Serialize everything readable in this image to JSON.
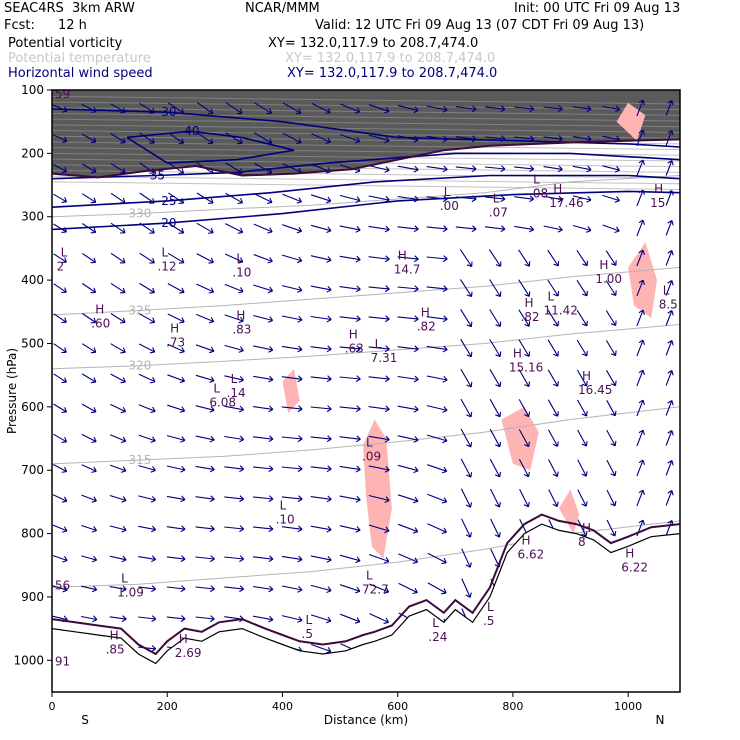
{
  "header": {
    "model": "SEAC4RS  3km ARW",
    "org": "NCAR/MMM",
    "init": "Init: 00 UTC Fri 09 Aug 13",
    "fcst_label": "Fcst:",
    "fcst_value": "12 h",
    "valid": "Valid: 12 UTC Fri 09 Aug 13 (07 CDT Fri 09 Aug 13)",
    "fields": [
      {
        "name": "Potential vorticity",
        "xsec": "XY= 132.0,117.9 to 208.7,474.0",
        "color": "#000000"
      },
      {
        "name": "Potential temperature",
        "xsec": "XY= 132.0,117.9 to 208.7,474.0",
        "color": "#c8c8c8"
      },
      {
        "name": "Horizontal wind speed",
        "xsec": "XY= 132.0,117.9 to 208.7,474.0",
        "color": "#000080"
      }
    ]
  },
  "chart_data": {
    "type": "cross-section",
    "xlabel": "Distance (km)",
    "ylabel": "Pressure (hPa)",
    "xlim": [
      0,
      1090
    ],
    "ylim": [
      1050,
      100
    ],
    "x_ticks": [
      "0",
      "200",
      "400",
      "600",
      "800",
      "1000"
    ],
    "y_ticks": [
      "100",
      "200",
      "300",
      "400",
      "500",
      "600",
      "700",
      "800",
      "900",
      "1000"
    ],
    "x_end_labels": {
      "left": "S",
      "right": "N"
    },
    "colors": {
      "wind": "#000080",
      "theta": "#b4b4b4",
      "pv_pos": "#ffb4b4",
      "terrain": "#3c0a3c",
      "label": "#4b0f55"
    },
    "theta_contours": [
      {
        "label": "330",
        "points": [
          [
            0,
            300
          ],
          [
            150,
            295
          ],
          [
            300,
            288
          ],
          [
            450,
            282
          ],
          [
            600,
            272
          ],
          [
            750,
            262
          ],
          [
            900,
            245
          ],
          [
            1090,
            235
          ]
        ]
      },
      {
        "label": "325",
        "points": [
          [
            0,
            455
          ],
          [
            150,
            448
          ],
          [
            300,
            440
          ],
          [
            450,
            430
          ],
          [
            600,
            420
          ],
          [
            750,
            410
          ],
          [
            900,
            395
          ],
          [
            1090,
            380
          ]
        ]
      },
      {
        "label": "320",
        "points": [
          [
            0,
            540
          ],
          [
            150,
            535
          ],
          [
            300,
            528
          ],
          [
            450,
            520
          ],
          [
            600,
            510
          ],
          [
            750,
            500
          ],
          [
            900,
            485
          ],
          [
            1090,
            470
          ]
        ]
      },
      {
        "label": "315",
        "points": [
          [
            0,
            690
          ],
          [
            150,
            684
          ],
          [
            300,
            678
          ],
          [
            450,
            668
          ],
          [
            600,
            655
          ],
          [
            750,
            640
          ],
          [
            900,
            620
          ],
          [
            1090,
            600
          ]
        ]
      },
      {
        "label": "",
        "points": [
          [
            0,
            885
          ],
          [
            150,
            880
          ],
          [
            300,
            870
          ],
          [
            450,
            860
          ],
          [
            600,
            845
          ],
          [
            750,
            825
          ],
          [
            900,
            800
          ],
          [
            1090,
            780
          ]
        ]
      }
    ],
    "wind_speed_contours": [
      {
        "label": "30",
        "points": [
          [
            0,
            130
          ],
          [
            200,
            135
          ],
          [
            400,
            150
          ],
          [
            600,
            175
          ],
          [
            800,
            180
          ],
          [
            1000,
            185
          ],
          [
            1090,
            190
          ]
        ]
      },
      {
        "label": "40",
        "points": [
          [
            130,
            175
          ],
          [
            240,
            165
          ],
          [
            330,
            175
          ],
          [
            420,
            195
          ],
          [
            320,
            210
          ],
          [
            200,
            215
          ],
          [
            130,
            175
          ]
        ]
      },
      {
        "label": "35",
        "points": [
          [
            0,
            240
          ],
          [
            180,
            235
          ],
          [
            320,
            230
          ],
          [
            480,
            215
          ],
          [
            700,
            200
          ],
          [
            900,
            200
          ],
          [
            1090,
            210
          ]
        ]
      },
      {
        "label": "25",
        "points": [
          [
            0,
            285
          ],
          [
            200,
            275
          ],
          [
            380,
            262
          ],
          [
            560,
            245
          ],
          [
            760,
            235
          ],
          [
            1000,
            235
          ],
          [
            1090,
            240
          ]
        ]
      },
      {
        "label": "20",
        "points": [
          [
            0,
            320
          ],
          [
            200,
            310
          ],
          [
            400,
            295
          ],
          [
            600,
            275
          ],
          [
            800,
            265
          ],
          [
            1000,
            260
          ],
          [
            1090,
            262
          ]
        ]
      }
    ],
    "tropopause_line": [
      [
        0,
        232
      ],
      [
        80,
        238
      ],
      [
        160,
        228
      ],
      [
        250,
        220
      ],
      [
        330,
        235
      ],
      [
        420,
        232
      ],
      [
        520,
        225
      ],
      [
        600,
        210
      ],
      [
        680,
        195
      ],
      [
        760,
        188
      ],
      [
        840,
        185
      ],
      [
        920,
        182
      ],
      [
        1000,
        180
      ],
      [
        1090,
        178
      ]
    ],
    "terrain": [
      [
        0,
        950
      ],
      [
        40,
        955
      ],
      [
        80,
        960
      ],
      [
        120,
        965
      ],
      [
        150,
        990
      ],
      [
        180,
        1005
      ],
      [
        200,
        985
      ],
      [
        230,
        965
      ],
      [
        260,
        970
      ],
      [
        290,
        955
      ],
      [
        330,
        950
      ],
      [
        370,
        965
      ],
      [
        400,
        975
      ],
      [
        430,
        985
      ],
      [
        470,
        990
      ],
      [
        510,
        985
      ],
      [
        540,
        975
      ],
      [
        560,
        970
      ],
      [
        590,
        960
      ],
      [
        620,
        930
      ],
      [
        650,
        920
      ],
      [
        680,
        940
      ],
      [
        700,
        920
      ],
      [
        730,
        940
      ],
      [
        760,
        900
      ],
      [
        790,
        830
      ],
      [
        820,
        800
      ],
      [
        850,
        785
      ],
      [
        880,
        795
      ],
      [
        910,
        800
      ],
      [
        940,
        810
      ],
      [
        970,
        830
      ],
      [
        1000,
        820
      ],
      [
        1040,
        805
      ],
      [
        1090,
        800
      ]
    ],
    "pv_positive_regions": [
      [
        [
          540,
          660
        ],
        [
          560,
          620
        ],
        [
          580,
          650
        ],
        [
          590,
          760
        ],
        [
          575,
          840
        ],
        [
          555,
          820
        ],
        [
          545,
          740
        ]
      ],
      [
        [
          780,
          620
        ],
        [
          820,
          600
        ],
        [
          845,
          640
        ],
        [
          830,
          700
        ],
        [
          800,
          690
        ]
      ],
      [
        [
          880,
          760
        ],
        [
          900,
          730
        ],
        [
          915,
          770
        ],
        [
          905,
          800
        ]
      ],
      [
        [
          1000,
          380
        ],
        [
          1030,
          340
        ],
        [
          1050,
          400
        ],
        [
          1040,
          460
        ],
        [
          1010,
          440
        ]
      ],
      [
        [
          400,
          560
        ],
        [
          420,
          540
        ],
        [
          430,
          590
        ],
        [
          410,
          610
        ]
      ],
      [
        [
          980,
          150
        ],
        [
          1000,
          120
        ],
        [
          1030,
          140
        ],
        [
          1015,
          180
        ]
      ]
    ],
    "extrema_labels": [
      {
        "x": 15,
        "y": 375,
        "type": "L",
        "value": "2"
      },
      {
        "x": 190,
        "y": 375,
        "type": "L",
        "value": ".12"
      },
      {
        "x": 320,
        "y": 385,
        "type": "L",
        "value": ".10"
      },
      {
        "x": 600,
        "y": 380,
        "type": "H",
        "value": "14.7"
      },
      {
        "x": 765,
        "y": 290,
        "type": "L",
        "value": ".07"
      },
      {
        "x": 680,
        "y": 280,
        "type": "L",
        "value": ".00"
      },
      {
        "x": 835,
        "y": 260,
        "type": "L",
        "value": ".08"
      },
      {
        "x": 870,
        "y": 275,
        "type": "H",
        "value": "17.46"
      },
      {
        "x": 1045,
        "y": 275,
        "type": "H",
        "value": "15"
      },
      {
        "x": 950,
        "y": 395,
        "type": "H",
        "value": "1.00"
      },
      {
        "x": 1060,
        "y": 435,
        "type": "L",
        "value": "8.5"
      },
      {
        "x": 860,
        "y": 445,
        "type": "L",
        "value": "11.42"
      },
      {
        "x": 820,
        "y": 455,
        "type": "H",
        "value": ".82"
      },
      {
        "x": 640,
        "y": 470,
        "type": "H",
        "value": ".82"
      },
      {
        "x": 75,
        "y": 465,
        "type": "H",
        "value": ".60"
      },
      {
        "x": 205,
        "y": 495,
        "type": "H",
        "value": ".73"
      },
      {
        "x": 320,
        "y": 475,
        "type": "H",
        "value": ".83"
      },
      {
        "x": 515,
        "y": 505,
        "type": "H",
        "value": ".63"
      },
      {
        "x": 560,
        "y": 520,
        "type": "L",
        "value": "7.31"
      },
      {
        "x": 800,
        "y": 535,
        "type": "H",
        "value": "15.16"
      },
      {
        "x": 920,
        "y": 570,
        "type": "H",
        "value": "16.45"
      },
      {
        "x": 310,
        "y": 575,
        "type": "L",
        "value": ".14"
      },
      {
        "x": 280,
        "y": 590,
        "type": "L",
        "value": "6.08"
      },
      {
        "x": 545,
        "y": 675,
        "type": "L",
        "value": ".09"
      },
      {
        "x": 395,
        "y": 775,
        "type": "L",
        "value": ".10"
      },
      {
        "x": 815,
        "y": 830,
        "type": "H",
        "value": "6.62"
      },
      {
        "x": 920,
        "y": 810,
        "type": "H",
        "value": "8"
      },
      {
        "x": 995,
        "y": 850,
        "type": "H",
        "value": "6.22"
      },
      {
        "x": 120,
        "y": 890,
        "type": "L",
        "value": "1.09"
      },
      {
        "x": 100,
        "y": 980,
        "type": "H",
        "value": ".85"
      },
      {
        "x": 220,
        "y": 985,
        "type": "H",
        "value": "2.69"
      },
      {
        "x": 440,
        "y": 955,
        "type": "L",
        "value": ".5"
      },
      {
        "x": 545,
        "y": 885,
        "type": "L",
        "value": "72.7"
      },
      {
        "x": 755,
        "y": 935,
        "type": "L",
        "value": ".5"
      },
      {
        "x": 660,
        "y": 960,
        "type": "L",
        "value": ".24"
      }
    ],
    "edge_labels": [
      {
        "x": 5,
        "y": 105,
        "value": "59"
      },
      {
        "x": 5,
        "y": 880,
        "value": "56"
      },
      {
        "x": 5,
        "y": 1000,
        "value": "91"
      }
    ]
  }
}
